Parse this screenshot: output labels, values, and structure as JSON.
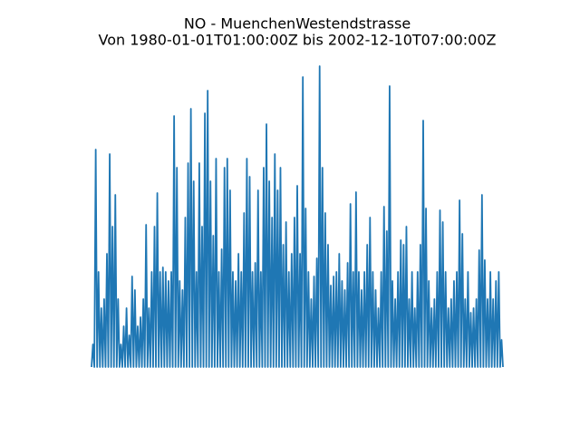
{
  "chart_data": {
    "type": "line",
    "title": "NO - MuenchenWestendstrasse",
    "subtitle": "Von 1980-01-01T01:00:00Z bis 2002-12-10T07:00:00Z",
    "color": "#1f77b4",
    "ylim": [
      0,
      350
    ],
    "values": [
      5,
      30,
      5,
      245,
      5,
      110,
      5,
      70,
      5,
      80,
      5,
      130,
      5,
      240,
      5,
      160,
      5,
      195,
      5,
      80,
      5,
      30,
      5,
      50,
      5,
      70,
      5,
      40,
      5,
      105,
      5,
      90,
      5,
      50,
      5,
      60,
      5,
      80,
      5,
      162,
      5,
      70,
      5,
      110,
      5,
      160,
      5,
      197,
      5,
      110,
      5,
      115,
      5,
      110,
      5,
      100,
      5,
      110,
      5,
      282,
      5,
      225,
      5,
      100,
      5,
      90,
      5,
      170,
      5,
      230,
      5,
      290,
      5,
      210,
      5,
      110,
      5,
      230,
      5,
      160,
      5,
      285,
      5,
      310,
      5,
      210,
      5,
      150,
      5,
      235,
      5,
      110,
      5,
      135,
      5,
      225,
      5,
      235,
      5,
      200,
      5,
      110,
      5,
      100,
      5,
      130,
      5,
      110,
      5,
      175,
      5,
      235,
      5,
      215,
      5,
      110,
      5,
      120,
      5,
      200,
      5,
      110,
      5,
      225,
      5,
      273,
      5,
      210,
      5,
      170,
      5,
      240,
      5,
      200,
      5,
      225,
      5,
      140,
      5,
      165,
      5,
      110,
      5,
      130,
      5,
      170,
      5,
      205,
      5,
      130,
      5,
      325,
      5,
      180,
      5,
      110,
      5,
      80,
      5,
      105,
      5,
      125,
      5,
      337,
      5,
      225,
      5,
      175,
      5,
      140,
      5,
      95,
      5,
      105,
      5,
      110,
      5,
      130,
      5,
      100,
      5,
      90,
      5,
      120,
      5,
      185,
      5,
      110,
      5,
      198,
      5,
      110,
      5,
      90,
      5,
      110,
      5,
      140,
      5,
      170,
      5,
      110,
      5,
      90,
      5,
      70,
      5,
      110,
      5,
      182,
      5,
      155,
      5,
      315,
      5,
      100,
      5,
      80,
      5,
      110,
      5,
      145,
      5,
      140,
      5,
      160,
      5,
      80,
      5,
      110,
      5,
      70,
      5,
      110,
      5,
      140,
      5,
      277,
      5,
      180,
      5,
      100,
      5,
      70,
      5,
      80,
      5,
      110,
      5,
      178,
      5,
      165,
      5,
      110,
      5,
      70,
      5,
      80,
      5,
      100,
      5,
      110,
      5,
      189,
      5,
      152,
      5,
      80,
      5,
      110,
      5,
      65,
      5,
      70,
      5,
      80,
      5,
      134,
      5,
      195,
      5,
      123,
      5,
      80,
      5,
      110,
      5,
      80,
      5,
      100,
      5,
      110,
      5,
      35,
      5
    ]
  }
}
